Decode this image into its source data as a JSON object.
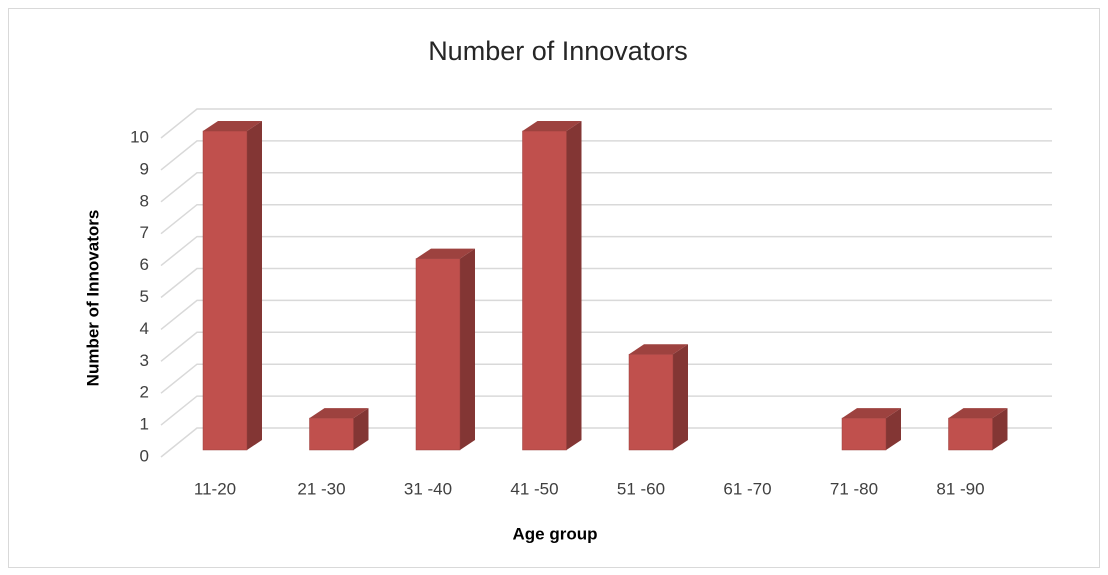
{
  "chart_data": {
    "type": "bar3d",
    "title": "Number of Innovators",
    "x_label": "Age group",
    "y_label": "Number of Innovators",
    "categories": [
      "11-20",
      "21 -30",
      "31 -40",
      "41 -50",
      "51 -60",
      "61 -70",
      "71 -80",
      "81 -90"
    ],
    "values": [
      10,
      1,
      6,
      10,
      3,
      0,
      1,
      1
    ],
    "color": "#c0504d",
    "ylim": [
      0,
      10
    ],
    "yticks": [
      0,
      1,
      2,
      3,
      4,
      5,
      6,
      7,
      8,
      9,
      10
    ],
    "grid": true
  }
}
